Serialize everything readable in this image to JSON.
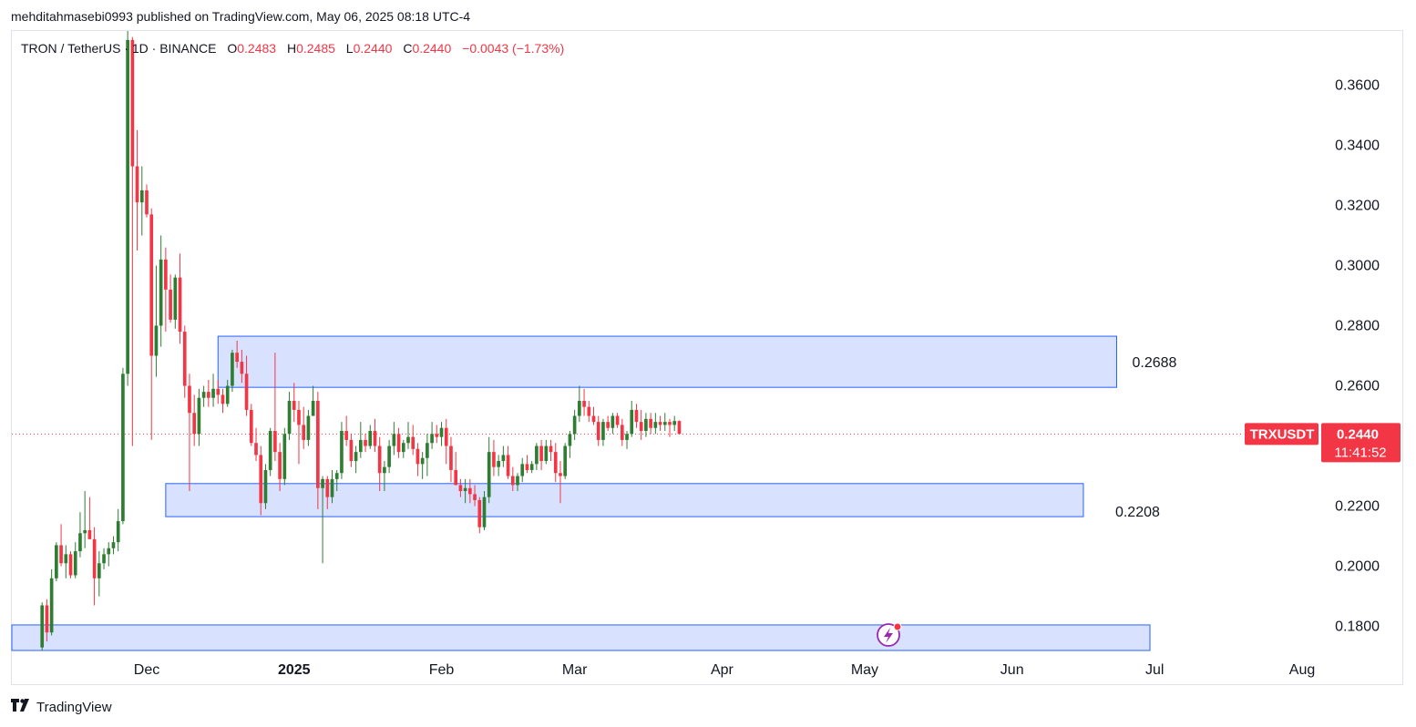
{
  "caption": "mehditahmasebi0993 published on TradingView.com, May 06, 2025 08:18 UTC-4",
  "legend": {
    "symbol": "TRON / TetherUS · 1D · BINANCE",
    "open_label": "O",
    "open": "0.2483",
    "high_label": "H",
    "high": "0.2485",
    "low_label": "L",
    "low": "0.2440",
    "close_label": "C",
    "close": "0.2440",
    "change": "−0.0043 (−1.73%)"
  },
  "brand": {
    "logo": "𝟏𝟕",
    "name": "TradingView"
  },
  "colors": {
    "up": "#2e7d32",
    "down": "#f23645",
    "zone_fill": "#d6e0ff",
    "zone_stroke": "#2962ff"
  },
  "chart_data": {
    "type": "candlestick",
    "symbol": "TRXUSDT",
    "timeframe": "1D",
    "ylim": [
      0.172,
      0.378
    ],
    "y_ticks": [
      "0.3600",
      "0.3400",
      "0.3200",
      "0.3000",
      "0.2800",
      "0.2600",
      "0.2200",
      "0.2000",
      "0.1800"
    ],
    "x_ticks": [
      {
        "label": "Dec",
        "date": "2024-12-01"
      },
      {
        "label": "2025",
        "date": "2025-01-01"
      },
      {
        "label": "Feb",
        "date": "2025-02-01"
      },
      {
        "label": "Mar",
        "date": "2025-03-01"
      },
      {
        "label": "Apr",
        "date": "2025-04-01"
      },
      {
        "label": "May",
        "date": "2025-05-01"
      },
      {
        "label": "Jun",
        "date": "2025-06-01"
      },
      {
        "label": "Jul",
        "date": "2025-07-01"
      },
      {
        "label": "Aug",
        "date": "2025-08-01"
      }
    ],
    "current_price": {
      "label": "TRXUSDT",
      "value": "0.2440",
      "countdown": "11:41:52"
    },
    "zones": [
      {
        "name": "resistance",
        "from": "2024-12-16",
        "to": "2025-06-23",
        "low": 0.2595,
        "high": 0.2765,
        "label": "0.2688"
      },
      {
        "name": "support",
        "from": "2024-12-05",
        "to": "2025-06-16",
        "low": 0.2165,
        "high": 0.2275,
        "label": "0.2208"
      },
      {
        "name": "lower",
        "from": "2024-11-01",
        "to": "2025-06-30",
        "low": 0.172,
        "high": 0.1805,
        "label": ""
      }
    ],
    "first_date": "2024-11-09",
    "candles": [
      [
        0.173,
        0.188,
        0.169,
        0.187
      ],
      [
        0.187,
        0.189,
        0.175,
        0.178
      ],
      [
        0.178,
        0.199,
        0.177,
        0.196
      ],
      [
        0.196,
        0.208,
        0.195,
        0.207
      ],
      [
        0.207,
        0.214,
        0.2,
        0.201
      ],
      [
        0.201,
        0.207,
        0.196,
        0.204
      ],
      [
        0.204,
        0.205,
        0.196,
        0.197
      ],
      [
        0.197,
        0.208,
        0.196,
        0.205
      ],
      [
        0.205,
        0.218,
        0.203,
        0.211
      ],
      [
        0.211,
        0.225,
        0.206,
        0.212
      ],
      [
        0.212,
        0.223,
        0.21,
        0.209
      ],
      [
        0.209,
        0.213,
        0.187,
        0.196
      ],
      [
        0.196,
        0.205,
        0.19,
        0.201
      ],
      [
        0.201,
        0.206,
        0.199,
        0.204
      ],
      [
        0.204,
        0.208,
        0.2,
        0.206
      ],
      [
        0.206,
        0.21,
        0.204,
        0.208
      ],
      [
        0.208,
        0.219,
        0.205,
        0.215
      ],
      [
        0.215,
        0.266,
        0.214,
        0.264
      ],
      [
        0.264,
        0.378,
        0.26,
        0.375
      ],
      [
        0.375,
        0.376,
        0.24,
        0.333
      ],
      [
        0.333,
        0.345,
        0.305,
        0.321
      ],
      [
        0.321,
        0.333,
        0.31,
        0.325
      ],
      [
        0.325,
        0.327,
        0.316,
        0.317
      ],
      [
        0.317,
        0.319,
        0.242,
        0.27
      ],
      [
        0.27,
        0.3,
        0.263,
        0.28
      ],
      [
        0.28,
        0.31,
        0.273,
        0.302
      ],
      [
        0.302,
        0.306,
        0.278,
        0.292
      ],
      [
        0.292,
        0.297,
        0.281,
        0.282
      ],
      [
        0.282,
        0.297,
        0.279,
        0.296
      ],
      [
        0.296,
        0.304,
        0.274,
        0.278
      ],
      [
        0.278,
        0.28,
        0.256,
        0.26
      ],
      [
        0.26,
        0.264,
        0.225,
        0.251
      ],
      [
        0.251,
        0.257,
        0.24,
        0.244
      ],
      [
        0.244,
        0.259,
        0.24,
        0.256
      ],
      [
        0.256,
        0.26,
        0.253,
        0.258
      ],
      [
        0.258,
        0.262,
        0.253,
        0.256
      ],
      [
        0.256,
        0.264,
        0.253,
        0.259
      ],
      [
        0.259,
        0.262,
        0.254,
        0.257
      ],
      [
        0.257,
        0.259,
        0.251,
        0.254
      ],
      [
        0.254,
        0.262,
        0.253,
        0.26
      ],
      [
        0.26,
        0.272,
        0.258,
        0.271
      ],
      [
        0.271,
        0.275,
        0.266,
        0.268
      ],
      [
        0.268,
        0.272,
        0.261,
        0.264
      ],
      [
        0.264,
        0.27,
        0.25,
        0.252
      ],
      [
        0.252,
        0.254,
        0.24,
        0.241
      ],
      [
        0.241,
        0.246,
        0.235,
        0.237
      ],
      [
        0.237,
        0.24,
        0.217,
        0.221
      ],
      [
        0.221,
        0.234,
        0.219,
        0.232
      ],
      [
        0.232,
        0.246,
        0.23,
        0.245
      ],
      [
        0.245,
        0.271,
        0.235,
        0.238
      ],
      [
        0.238,
        0.241,
        0.225,
        0.229
      ],
      [
        0.229,
        0.246,
        0.227,
        0.244
      ],
      [
        0.244,
        0.258,
        0.242,
        0.255
      ],
      [
        0.255,
        0.261,
        0.248,
        0.252
      ],
      [
        0.252,
        0.255,
        0.234,
        0.247
      ],
      [
        0.247,
        0.253,
        0.239,
        0.242
      ],
      [
        0.242,
        0.252,
        0.24,
        0.25
      ],
      [
        0.25,
        0.26,
        0.25,
        0.255
      ],
      [
        0.255,
        0.258,
        0.219,
        0.226
      ],
      [
        0.226,
        0.23,
        0.201,
        0.229
      ],
      [
        0.229,
        0.23,
        0.219,
        0.223
      ],
      [
        0.223,
        0.232,
        0.221,
        0.229
      ],
      [
        0.229,
        0.232,
        0.225,
        0.231
      ],
      [
        0.231,
        0.248,
        0.229,
        0.245
      ],
      [
        0.245,
        0.25,
        0.24,
        0.242
      ],
      [
        0.242,
        0.244,
        0.233,
        0.235
      ],
      [
        0.235,
        0.24,
        0.231,
        0.238
      ],
      [
        0.238,
        0.248,
        0.236,
        0.242
      ],
      [
        0.242,
        0.244,
        0.238,
        0.24
      ],
      [
        0.24,
        0.247,
        0.239,
        0.245
      ],
      [
        0.245,
        0.249,
        0.238,
        0.24
      ],
      [
        0.24,
        0.243,
        0.225,
        0.231
      ],
      [
        0.231,
        0.235,
        0.225,
        0.233
      ],
      [
        0.233,
        0.242,
        0.231,
        0.24
      ],
      [
        0.24,
        0.248,
        0.237,
        0.244
      ],
      [
        0.244,
        0.246,
        0.236,
        0.238
      ],
      [
        0.238,
        0.242,
        0.236,
        0.241
      ],
      [
        0.241,
        0.248,
        0.239,
        0.243
      ],
      [
        0.243,
        0.247,
        0.237,
        0.239
      ],
      [
        0.239,
        0.241,
        0.23,
        0.234
      ],
      [
        0.234,
        0.238,
        0.229,
        0.236
      ],
      [
        0.236,
        0.244,
        0.23,
        0.241
      ],
      [
        0.241,
        0.248,
        0.239,
        0.244
      ],
      [
        0.244,
        0.247,
        0.241,
        0.243
      ],
      [
        0.243,
        0.248,
        0.24,
        0.246
      ],
      [
        0.246,
        0.249,
        0.234,
        0.24
      ],
      [
        0.24,
        0.243,
        0.228,
        0.232
      ],
      [
        0.232,
        0.238,
        0.227,
        0.227
      ],
      [
        0.227,
        0.229,
        0.223,
        0.225
      ],
      [
        0.225,
        0.229,
        0.221,
        0.226
      ],
      [
        0.226,
        0.229,
        0.221,
        0.224
      ],
      [
        0.224,
        0.227,
        0.22,
        0.222
      ],
      [
        0.222,
        0.223,
        0.211,
        0.213
      ],
      [
        0.213,
        0.225,
        0.212,
        0.223
      ],
      [
        0.223,
        0.243,
        0.221,
        0.238
      ],
      [
        0.238,
        0.242,
        0.23,
        0.233
      ],
      [
        0.233,
        0.237,
        0.23,
        0.235
      ],
      [
        0.235,
        0.24,
        0.233,
        0.237
      ],
      [
        0.237,
        0.24,
        0.229,
        0.23
      ],
      [
        0.23,
        0.233,
        0.225,
        0.227
      ],
      [
        0.227,
        0.231,
        0.225,
        0.23
      ],
      [
        0.23,
        0.236,
        0.228,
        0.234
      ],
      [
        0.234,
        0.237,
        0.231,
        0.232
      ],
      [
        0.232,
        0.235,
        0.231,
        0.234
      ],
      [
        0.234,
        0.241,
        0.232,
        0.24
      ],
      [
        0.24,
        0.242,
        0.232,
        0.235
      ],
      [
        0.235,
        0.242,
        0.234,
        0.24
      ],
      [
        0.24,
        0.242,
        0.235,
        0.238
      ],
      [
        0.238,
        0.241,
        0.228,
        0.231
      ],
      [
        0.231,
        0.235,
        0.221,
        0.23
      ],
      [
        0.23,
        0.241,
        0.229,
        0.24
      ],
      [
        0.24,
        0.245,
        0.236,
        0.244
      ],
      [
        0.244,
        0.252,
        0.242,
        0.25
      ],
      [
        0.25,
        0.26,
        0.248,
        0.255
      ],
      [
        0.255,
        0.259,
        0.25,
        0.253
      ],
      [
        0.253,
        0.255,
        0.248,
        0.25
      ],
      [
        0.25,
        0.253,
        0.247,
        0.248
      ],
      [
        0.248,
        0.25,
        0.24,
        0.242
      ],
      [
        0.242,
        0.249,
        0.24,
        0.248
      ],
      [
        0.248,
        0.25,
        0.245,
        0.246
      ],
      [
        0.246,
        0.251,
        0.244,
        0.25
      ],
      [
        0.25,
        0.251,
        0.246,
        0.247
      ],
      [
        0.247,
        0.249,
        0.24,
        0.242
      ],
      [
        0.242,
        0.245,
        0.239,
        0.244
      ],
      [
        0.244,
        0.255,
        0.243,
        0.252
      ],
      [
        0.252,
        0.254,
        0.246,
        0.248
      ],
      [
        0.248,
        0.252,
        0.242,
        0.245
      ],
      [
        0.245,
        0.251,
        0.243,
        0.249
      ],
      [
        0.249,
        0.251,
        0.244,
        0.246
      ],
      [
        0.246,
        0.251,
        0.244,
        0.248
      ],
      [
        0.248,
        0.25,
        0.245,
        0.247
      ],
      [
        0.247,
        0.251,
        0.245,
        0.248
      ],
      [
        0.248,
        0.249,
        0.243,
        0.247
      ],
      [
        0.247,
        0.25,
        0.245,
        0.2483
      ],
      [
        0.2483,
        0.2485,
        0.244,
        0.244
      ]
    ]
  }
}
